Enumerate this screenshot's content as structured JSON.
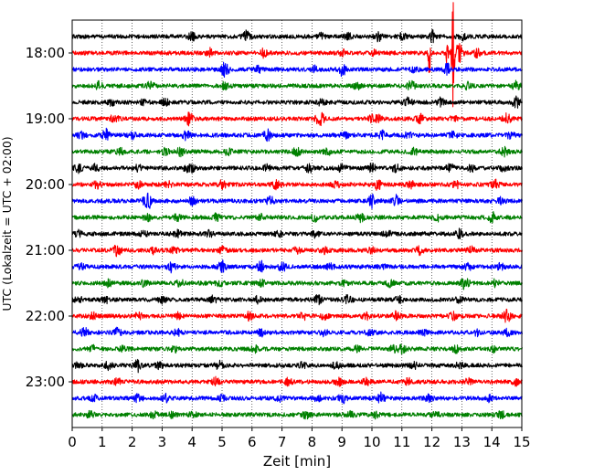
{
  "chart_data": {
    "type": "line",
    "title": "",
    "xlabel": "Zeit  [min]",
    "ylabel": "UTC (Lokalzeit = UTC + 02:00)",
    "xlim": [
      0,
      15
    ],
    "x_ticks": [
      "0",
      "1",
      "2",
      "3",
      "4",
      "5",
      "6",
      "7",
      "8",
      "9",
      "10",
      "11",
      "12",
      "13",
      "14",
      "15"
    ],
    "y_ticks": [
      "18:00",
      "19:00",
      "20:00",
      "21:00",
      "22:00",
      "23:00"
    ],
    "grid": "vertical dotted at each minute",
    "trace_colors": [
      "#000000",
      "#ff0000",
      "#0000ff",
      "#008000"
    ],
    "series": [
      {
        "row": "17:45",
        "color": "#000000",
        "events": [
          [
            4.0,
            4
          ],
          [
            5.8,
            5
          ],
          [
            8.3,
            3
          ],
          [
            9.2,
            3
          ],
          [
            10.2,
            4
          ],
          [
            11.0,
            4
          ],
          [
            12.0,
            6
          ],
          [
            13.0,
            3
          ]
        ]
      },
      {
        "row": "18:00",
        "color": "#ff0000",
        "events": [
          [
            4.6,
            4
          ],
          [
            6.4,
            4
          ],
          [
            9.0,
            3
          ],
          [
            10.1,
            3
          ],
          [
            11.9,
            28
          ],
          [
            12.5,
            20
          ],
          [
            12.7,
            70
          ],
          [
            12.9,
            10
          ],
          [
            13.5,
            4
          ]
        ]
      },
      {
        "row": "18:15",
        "color": "#0000ff",
        "events": [
          [
            5.1,
            7
          ],
          [
            6.2,
            3
          ],
          [
            8.1,
            3
          ],
          [
            9.0,
            6
          ],
          [
            11.4,
            3
          ],
          [
            12.5,
            5
          ]
        ]
      },
      {
        "row": "18:30",
        "color": "#008000",
        "events": [
          [
            0.9,
            4
          ],
          [
            2.6,
            4
          ],
          [
            5.1,
            4
          ],
          [
            9.5,
            3
          ],
          [
            11.3,
            5
          ],
          [
            13.2,
            3
          ],
          [
            14.8,
            4
          ]
        ]
      },
      {
        "row": "18:45",
        "color": "#000000",
        "events": [
          [
            1.3,
            3
          ],
          [
            2.4,
            3
          ],
          [
            3.1,
            3
          ],
          [
            8.3,
            3
          ],
          [
            11.2,
            4
          ],
          [
            12.3,
            4
          ],
          [
            14.8,
            5
          ]
        ]
      },
      {
        "row": "19:00",
        "color": "#ff0000",
        "events": [
          [
            1.4,
            4
          ],
          [
            3.9,
            6
          ],
          [
            8.2,
            3
          ],
          [
            8.3,
            4
          ],
          [
            10.0,
            3
          ],
          [
            10.2,
            3
          ],
          [
            11.6,
            4
          ],
          [
            12.7,
            3
          ],
          [
            14.5,
            5
          ]
        ]
      },
      {
        "row": "19:15",
        "color": "#0000ff",
        "events": [
          [
            0.3,
            3
          ],
          [
            1.1,
            6
          ],
          [
            2.0,
            3
          ],
          [
            3.8,
            4
          ],
          [
            6.5,
            5
          ],
          [
            9.1,
            3
          ],
          [
            10.3,
            5
          ],
          [
            11.2,
            3
          ],
          [
            12.7,
            3
          ],
          [
            14.6,
            4
          ]
        ]
      },
      {
        "row": "19:30",
        "color": "#008000",
        "events": [
          [
            1.6,
            3
          ],
          [
            3.1,
            3
          ],
          [
            3.6,
            4
          ],
          [
            5.2,
            3
          ],
          [
            7.5,
            5
          ],
          [
            8.5,
            3
          ],
          [
            11.4,
            3
          ],
          [
            14.4,
            4
          ]
        ]
      },
      {
        "row": "19:45",
        "color": "#000000",
        "events": [
          [
            0.2,
            4
          ],
          [
            0.8,
            4
          ],
          [
            2.2,
            3
          ],
          [
            3.8,
            3
          ],
          [
            4.0,
            3
          ],
          [
            6.5,
            3
          ],
          [
            7.9,
            4
          ],
          [
            9.0,
            4
          ],
          [
            10.0,
            4
          ],
          [
            10.8,
            4
          ],
          [
            12.6,
            4
          ],
          [
            13.3,
            3
          ],
          [
            14.4,
            3
          ]
        ]
      },
      {
        "row": "20:00",
        "color": "#ff0000",
        "events": [
          [
            0.8,
            4
          ],
          [
            2.2,
            3
          ],
          [
            3.2,
            3
          ],
          [
            5.0,
            4
          ],
          [
            6.8,
            4
          ],
          [
            8.8,
            3
          ],
          [
            10.2,
            5
          ],
          [
            11.3,
            3
          ],
          [
            12.8,
            3
          ],
          [
            14.1,
            4
          ]
        ]
      },
      {
        "row": "20:15",
        "color": "#0000ff",
        "events": [
          [
            2.5,
            9
          ],
          [
            4.0,
            4
          ],
          [
            6.6,
            4
          ],
          [
            10.0,
            7
          ],
          [
            10.8,
            6
          ],
          [
            14.3,
            3
          ]
        ]
      },
      {
        "row": "20:30",
        "color": "#008000",
        "events": [
          [
            2.5,
            3
          ],
          [
            3.5,
            3
          ],
          [
            4.8,
            3
          ],
          [
            6.3,
            3
          ],
          [
            8.1,
            4
          ],
          [
            9.6,
            4
          ],
          [
            12.2,
            3
          ],
          [
            14.0,
            5
          ]
        ]
      },
      {
        "row": "20:45",
        "color": "#000000",
        "events": [
          [
            0.2,
            3
          ],
          [
            2.4,
            3
          ],
          [
            3.5,
            3
          ],
          [
            4.6,
            3
          ],
          [
            6.9,
            3
          ],
          [
            8.1,
            3
          ],
          [
            10.5,
            3
          ],
          [
            12.9,
            4
          ]
        ]
      },
      {
        "row": "21:00",
        "color": "#ff0000",
        "events": [
          [
            1.5,
            5
          ],
          [
            2.7,
            3
          ],
          [
            3.4,
            3
          ],
          [
            5.0,
            3
          ],
          [
            7.5,
            3
          ],
          [
            8.4,
            3
          ],
          [
            10.0,
            3
          ],
          [
            11.6,
            4
          ],
          [
            13.3,
            3
          ]
        ]
      },
      {
        "row": "21:15",
        "color": "#0000ff",
        "events": [
          [
            0.3,
            3
          ],
          [
            3.3,
            5
          ],
          [
            5.0,
            6
          ],
          [
            6.3,
            6
          ],
          [
            7.0,
            4
          ],
          [
            8.6,
            3
          ],
          [
            10.3,
            3
          ],
          [
            13.2,
            3
          ],
          [
            14.3,
            3
          ]
        ]
      },
      {
        "row": "21:30",
        "color": "#008000",
        "events": [
          [
            1.2,
            3
          ],
          [
            2.4,
            3
          ],
          [
            3.6,
            3
          ],
          [
            4.9,
            3
          ],
          [
            6.3,
            3
          ],
          [
            9.1,
            3
          ],
          [
            10.6,
            3
          ],
          [
            13.1,
            6
          ],
          [
            14.1,
            3
          ]
        ]
      },
      {
        "row": "21:45",
        "color": "#000000",
        "events": [
          [
            0.2,
            3
          ],
          [
            1.1,
            3
          ],
          [
            3.0,
            3
          ],
          [
            4.7,
            3
          ],
          [
            6.2,
            3
          ],
          [
            8.2,
            4
          ],
          [
            9.2,
            5
          ],
          [
            10.9,
            3
          ],
          [
            12.9,
            3
          ]
        ]
      },
      {
        "row": "22:00",
        "color": "#ff0000",
        "events": [
          [
            0.7,
            3
          ],
          [
            2.2,
            3
          ],
          [
            3.5,
            3
          ],
          [
            5.9,
            4
          ],
          [
            7.7,
            3
          ],
          [
            8.4,
            3
          ],
          [
            9.8,
            3
          ],
          [
            10.8,
            4
          ],
          [
            12.7,
            4
          ],
          [
            14.5,
            6
          ]
        ]
      },
      {
        "row": "22:15",
        "color": "#0000ff",
        "events": [
          [
            0.4,
            4
          ],
          [
            1.5,
            4
          ],
          [
            3.5,
            3
          ],
          [
            6.3,
            3
          ],
          [
            8.4,
            3
          ],
          [
            9.9,
            3
          ],
          [
            11.7,
            3
          ],
          [
            13.5,
            3
          ],
          [
            14.5,
            3
          ]
        ]
      },
      {
        "row": "22:30",
        "color": "#008000",
        "events": [
          [
            0.7,
            3
          ],
          [
            1.7,
            3
          ],
          [
            3.4,
            3
          ],
          [
            6.1,
            3
          ],
          [
            9.5,
            3
          ],
          [
            10.7,
            3
          ],
          [
            11.0,
            4
          ],
          [
            12.8,
            3
          ],
          [
            14.1,
            3
          ]
        ]
      },
      {
        "row": "22:45",
        "color": "#000000",
        "events": [
          [
            0.2,
            3
          ],
          [
            1.2,
            4
          ],
          [
            2.2,
            6
          ],
          [
            2.9,
            3
          ],
          [
            4.9,
            4
          ],
          [
            7.7,
            3
          ],
          [
            8.8,
            4
          ],
          [
            11.4,
            3
          ],
          [
            12.9,
            3
          ]
        ]
      },
      {
        "row": "23:00",
        "color": "#ff0000",
        "events": [
          [
            1.5,
            3
          ],
          [
            4.8,
            4
          ],
          [
            7.2,
            3
          ],
          [
            8.9,
            3
          ],
          [
            9.8,
            3
          ],
          [
            11.2,
            3
          ],
          [
            13.2,
            3
          ],
          [
            14.8,
            3
          ]
        ]
      },
      {
        "row": "23:15",
        "color": "#0000ff",
        "events": [
          [
            0.7,
            3
          ],
          [
            2.2,
            5
          ],
          [
            3.1,
            4
          ],
          [
            5.0,
            3
          ],
          [
            6.9,
            3
          ],
          [
            8.2,
            3
          ],
          [
            9.0,
            5
          ],
          [
            10.3,
            5
          ],
          [
            11.9,
            3
          ],
          [
            13.9,
            3
          ]
        ]
      },
      {
        "row": "23:30",
        "color": "#008000",
        "events": [
          [
            0.6,
            3
          ],
          [
            2.7,
            3
          ],
          [
            3.3,
            3
          ],
          [
            4.0,
            3
          ],
          [
            7.8,
            3
          ],
          [
            9.3,
            3
          ],
          [
            10.1,
            3
          ],
          [
            12.1,
            3
          ],
          [
            14.3,
            3
          ]
        ]
      }
    ]
  }
}
